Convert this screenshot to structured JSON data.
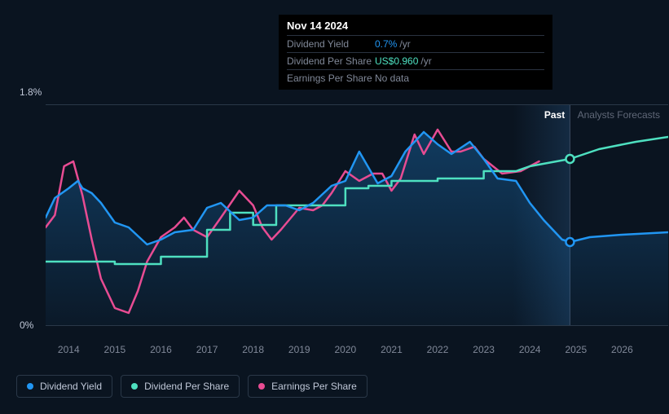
{
  "tooltip": {
    "date": "Nov 14 2024",
    "rows": [
      {
        "label": "Dividend Yield",
        "value": "0.7%",
        "unit": "/yr",
        "color": "#2196f3"
      },
      {
        "label": "Dividend Per Share",
        "value": "US$0.960",
        "unit": "/yr",
        "color": "#4ee0c0"
      },
      {
        "label": "Earnings Per Share",
        "value": "No data",
        "unit": "",
        "color": "#808898"
      }
    ]
  },
  "chart": {
    "type": "line",
    "background": "#0a1420",
    "grid_color": "#2a3848",
    "ylim": [
      0,
      1.8
    ],
    "ylabels": [
      {
        "v": 1.8,
        "text": "1.8%"
      },
      {
        "v": 0,
        "text": "0%"
      }
    ],
    "xlim": [
      2013.5,
      2027
    ],
    "xticks": [
      2014,
      2015,
      2016,
      2017,
      2018,
      2019,
      2020,
      2021,
      2022,
      2023,
      2024,
      2025,
      2026
    ],
    "segment": {
      "past": "Past",
      "forecast": "Analysts Forecasts",
      "split": 2024.87
    },
    "marker_x": 2024.87,
    "series": [
      {
        "name": "Dividend Yield",
        "color": "#2196f3",
        "fill": true,
        "width": 2.5,
        "marker_y": 0.68,
        "points": [
          [
            2013.5,
            0.88
          ],
          [
            2013.7,
            1.04
          ],
          [
            2014.0,
            1.12
          ],
          [
            2014.2,
            1.18
          ],
          [
            2014.3,
            1.12
          ],
          [
            2014.5,
            1.08
          ],
          [
            2014.7,
            1.0
          ],
          [
            2015.0,
            0.84
          ],
          [
            2015.3,
            0.8
          ],
          [
            2015.7,
            0.66
          ],
          [
            2016.0,
            0.7
          ],
          [
            2016.3,
            0.76
          ],
          [
            2016.7,
            0.78
          ],
          [
            2017.0,
            0.96
          ],
          [
            2017.3,
            1.0
          ],
          [
            2017.7,
            0.86
          ],
          [
            2018.0,
            0.88
          ],
          [
            2018.3,
            0.98
          ],
          [
            2018.7,
            0.98
          ],
          [
            2019.0,
            0.94
          ],
          [
            2019.3,
            1.0
          ],
          [
            2019.7,
            1.14
          ],
          [
            2020.0,
            1.18
          ],
          [
            2020.3,
            1.42
          ],
          [
            2020.7,
            1.16
          ],
          [
            2021.0,
            1.22
          ],
          [
            2021.3,
            1.42
          ],
          [
            2021.7,
            1.58
          ],
          [
            2022.0,
            1.48
          ],
          [
            2022.3,
            1.4
          ],
          [
            2022.7,
            1.5
          ],
          [
            2023.0,
            1.36
          ],
          [
            2023.3,
            1.2
          ],
          [
            2023.7,
            1.18
          ],
          [
            2024.0,
            1.0
          ],
          [
            2024.3,
            0.86
          ],
          [
            2024.7,
            0.7
          ],
          [
            2024.87,
            0.68
          ],
          [
            2025.3,
            0.72
          ],
          [
            2026.0,
            0.74
          ],
          [
            2027.0,
            0.76
          ]
        ]
      },
      {
        "name": "Dividend Per Share",
        "color": "#4ee0c0",
        "fill": false,
        "width": 2.5,
        "marker_y": 1.36,
        "points": [
          [
            2013.5,
            0.52
          ],
          [
            2015.0,
            0.52
          ],
          [
            2015.0,
            0.5
          ],
          [
            2016.0,
            0.5
          ],
          [
            2016.0,
            0.56
          ],
          [
            2017.0,
            0.56
          ],
          [
            2017.0,
            0.78
          ],
          [
            2017.5,
            0.78
          ],
          [
            2017.5,
            0.92
          ],
          [
            2018.0,
            0.92
          ],
          [
            2018.0,
            0.82
          ],
          [
            2018.5,
            0.82
          ],
          [
            2018.5,
            0.98
          ],
          [
            2019.0,
            0.98
          ],
          [
            2019.0,
            0.98
          ],
          [
            2020.0,
            0.98
          ],
          [
            2020.0,
            1.12
          ],
          [
            2020.5,
            1.12
          ],
          [
            2020.5,
            1.14
          ],
          [
            2021.0,
            1.14
          ],
          [
            2021.0,
            1.18
          ],
          [
            2022.0,
            1.18
          ],
          [
            2022.0,
            1.2
          ],
          [
            2023.0,
            1.2
          ],
          [
            2023.0,
            1.26
          ],
          [
            2023.7,
            1.26
          ],
          [
            2024.0,
            1.3
          ],
          [
            2024.87,
            1.36
          ],
          [
            2025.5,
            1.44
          ],
          [
            2026.3,
            1.5
          ],
          [
            2027.0,
            1.54
          ]
        ]
      },
      {
        "name": "Earnings Per Share",
        "color": "#e84c93",
        "fill": false,
        "width": 2.5,
        "marker_y": null,
        "points": [
          [
            2013.5,
            0.8
          ],
          [
            2013.7,
            0.9
          ],
          [
            2013.9,
            1.3
          ],
          [
            2014.1,
            1.34
          ],
          [
            2014.3,
            1.06
          ],
          [
            2014.5,
            0.7
          ],
          [
            2014.7,
            0.38
          ],
          [
            2015.0,
            0.14
          ],
          [
            2015.3,
            0.1
          ],
          [
            2015.5,
            0.28
          ],
          [
            2015.7,
            0.52
          ],
          [
            2016.0,
            0.72
          ],
          [
            2016.3,
            0.8
          ],
          [
            2016.5,
            0.88
          ],
          [
            2016.7,
            0.78
          ],
          [
            2017.0,
            0.72
          ],
          [
            2017.3,
            0.88
          ],
          [
            2017.7,
            1.1
          ],
          [
            2018.0,
            0.98
          ],
          [
            2018.2,
            0.8
          ],
          [
            2018.4,
            0.7
          ],
          [
            2018.6,
            0.78
          ],
          [
            2019.0,
            0.96
          ],
          [
            2019.3,
            0.94
          ],
          [
            2019.5,
            0.98
          ],
          [
            2019.7,
            1.08
          ],
          [
            2020.0,
            1.26
          ],
          [
            2020.3,
            1.18
          ],
          [
            2020.6,
            1.24
          ],
          [
            2020.8,
            1.24
          ],
          [
            2021.0,
            1.1
          ],
          [
            2021.2,
            1.2
          ],
          [
            2021.5,
            1.56
          ],
          [
            2021.7,
            1.4
          ],
          [
            2022.0,
            1.6
          ],
          [
            2022.3,
            1.42
          ],
          [
            2022.5,
            1.42
          ],
          [
            2022.8,
            1.46
          ],
          [
            2023.0,
            1.36
          ],
          [
            2023.4,
            1.24
          ],
          [
            2023.8,
            1.26
          ],
          [
            2024.2,
            1.34
          ]
        ]
      }
    ],
    "legend": [
      "Dividend Yield",
      "Dividend Per Share",
      "Earnings Per Share"
    ]
  }
}
